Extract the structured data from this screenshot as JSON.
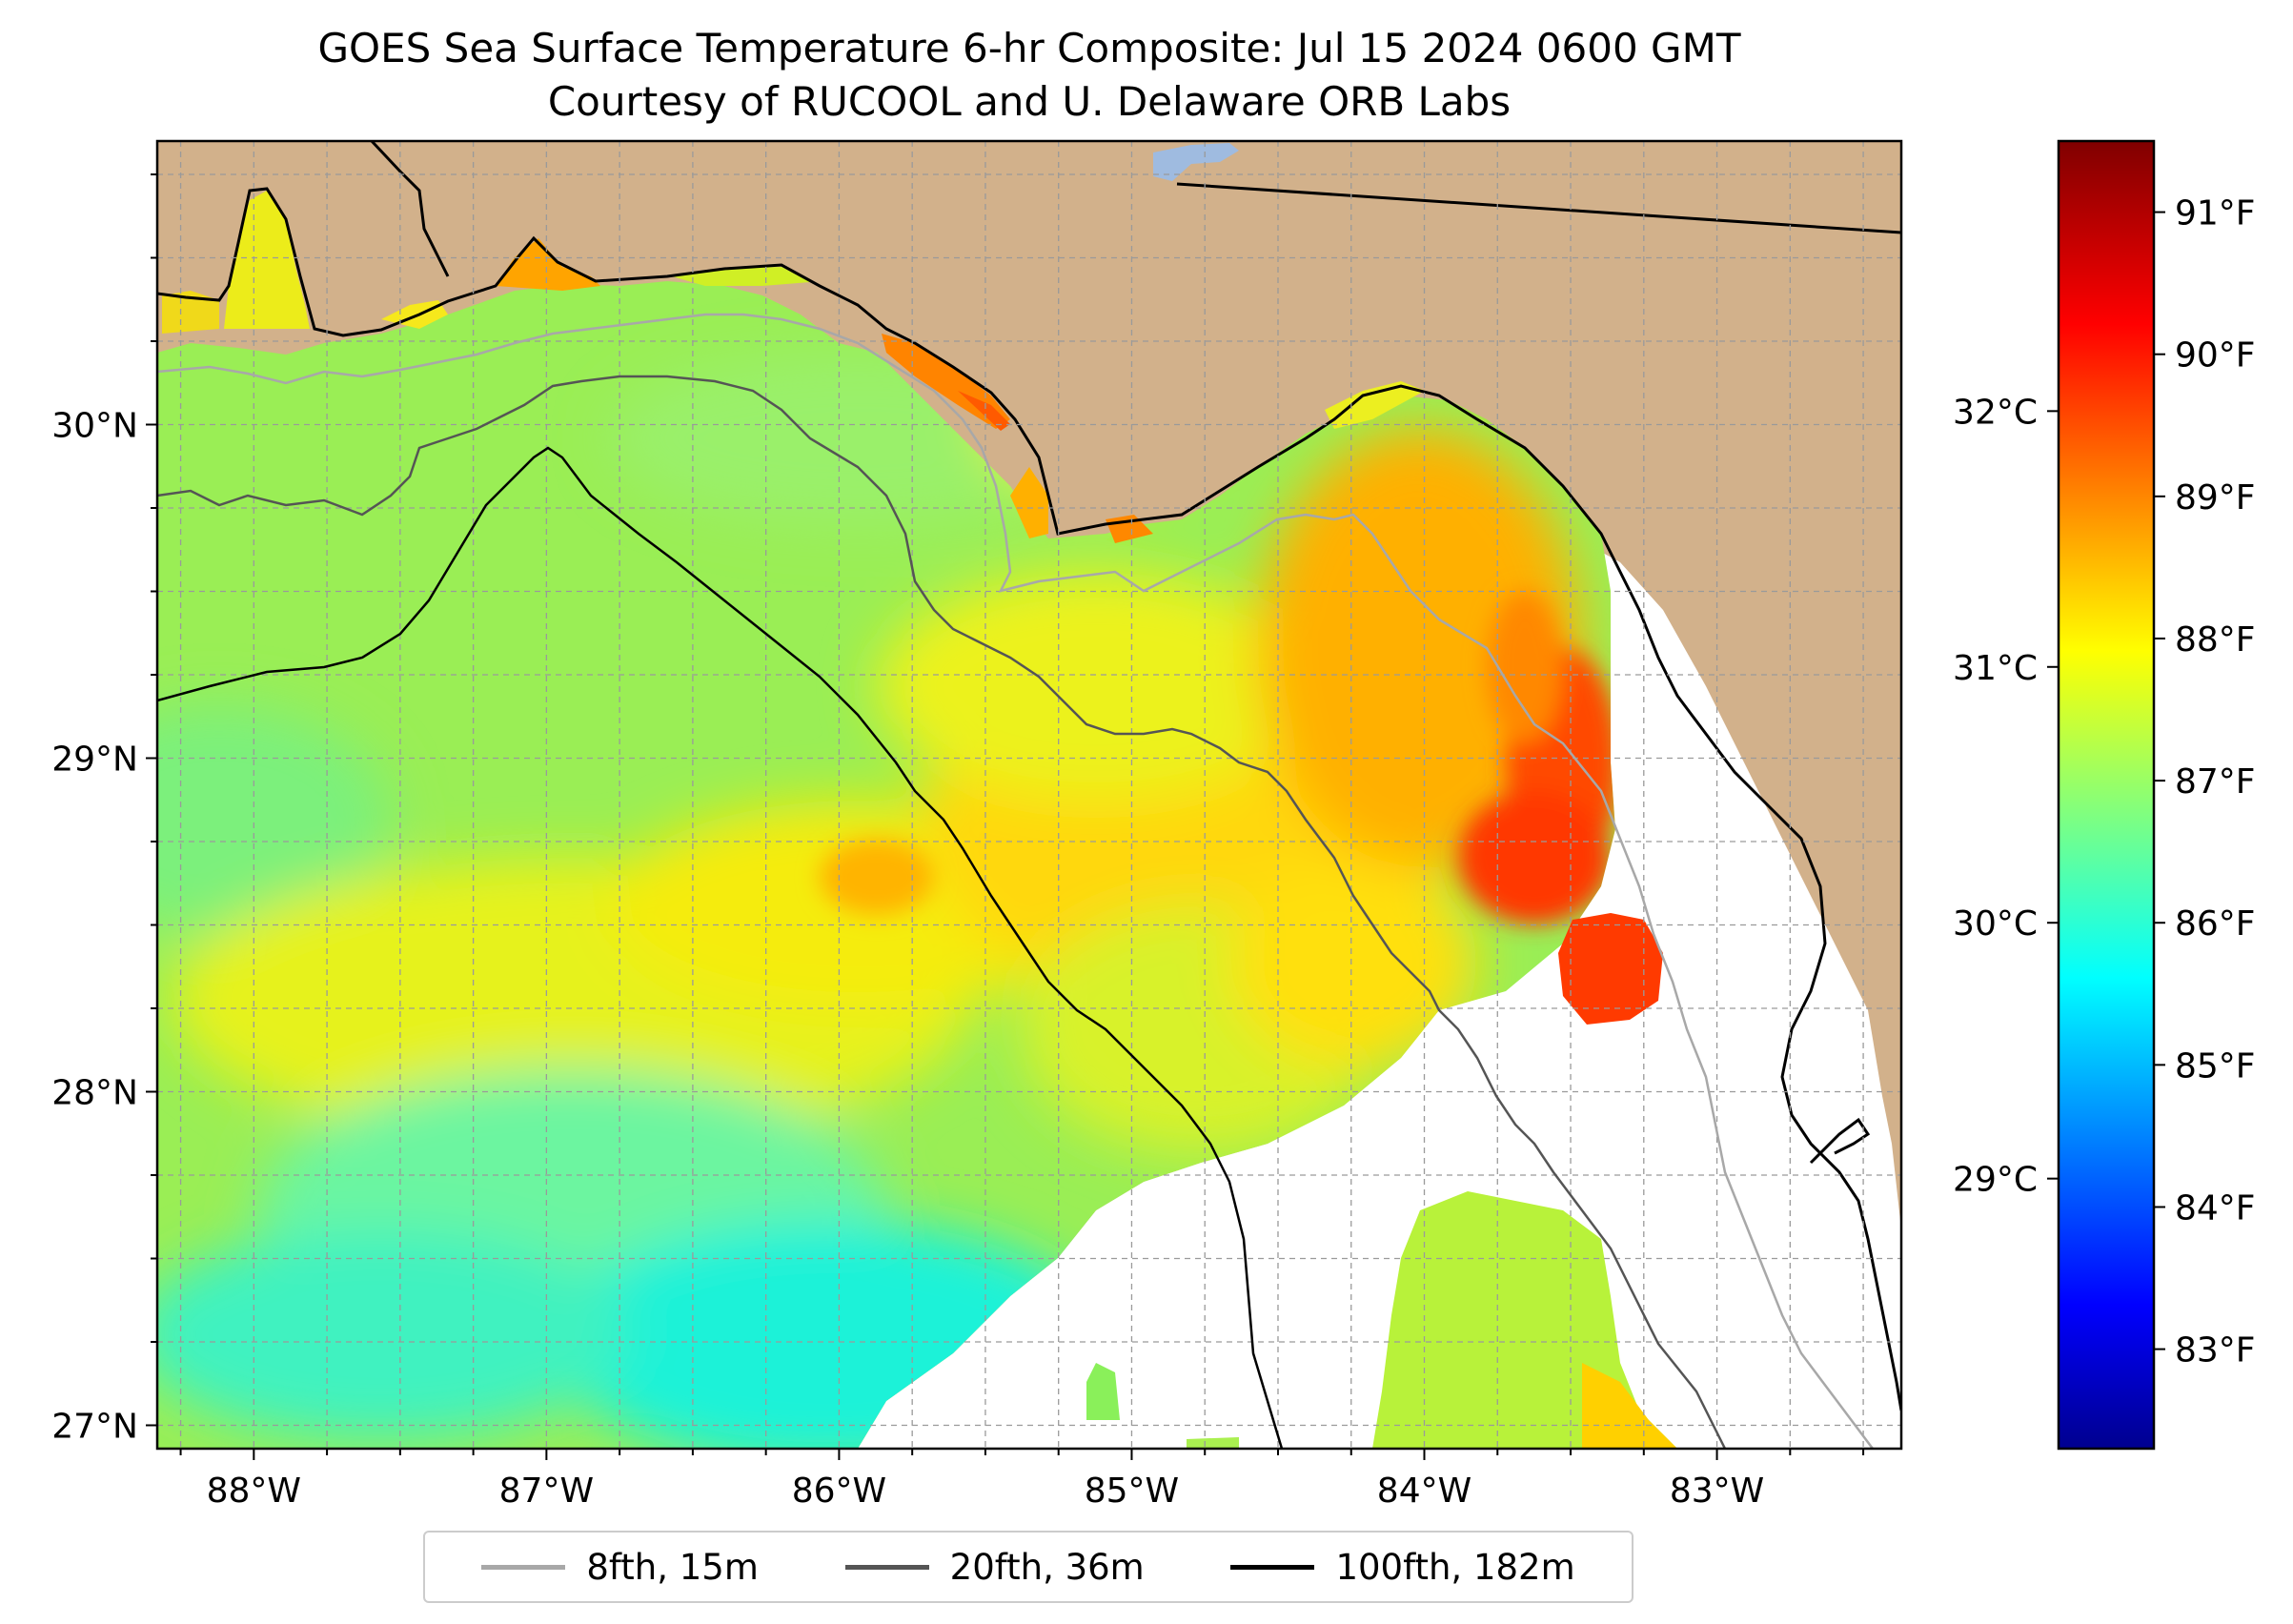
{
  "title": {
    "line1": "GOES Sea Surface Temperature 6-hr Composite: Jul 15 2024 0600 GMT",
    "line2": "Courtesy of RUCOOL and U. Delaware ORB Labs"
  },
  "map": {
    "region": "northeastern Gulf of Mexico",
    "extent": {
      "lon": [
        -88.33,
        -82.37
      ],
      "lat": [
        26.93,
        30.85
      ]
    },
    "colors": {
      "land": "#d2b18b",
      "cloud_gap": "#ffffff",
      "lake": "#9fbbe0",
      "coastline": "#000000",
      "grid": "#9a9a9a"
    },
    "lat_ticks": [
      {
        "value": 27,
        "label": "27°N"
      },
      {
        "value": 28,
        "label": "28°N"
      },
      {
        "value": 29,
        "label": "29°N"
      },
      {
        "value": 30,
        "label": "30°N"
      }
    ],
    "lon_ticks": [
      {
        "value": -88,
        "label": "88°W"
      },
      {
        "value": -87,
        "label": "87°W"
      },
      {
        "value": -86,
        "label": "86°W"
      },
      {
        "value": -85,
        "label": "85°W"
      },
      {
        "value": -84,
        "label": "84°W"
      },
      {
        "value": -83,
        "label": "83°W"
      }
    ],
    "grid_step_deg": 0.25,
    "sst_regions": [
      {
        "name": "central-gulf-warm-belt",
        "temp_f": 88.0
      },
      {
        "name": "florida-big-bend-hot-patch",
        "temp_f": 90.3
      },
      {
        "name": "southwest-cool-area",
        "temp_f": 86.0
      },
      {
        "name": "panhandle-bays",
        "temp_f": 89.0
      }
    ]
  },
  "legend": {
    "items": [
      {
        "label": "8fth, 15m",
        "color": "#a8a8a8"
      },
      {
        "label": "20fth, 36m",
        "color": "#555555"
      },
      {
        "label": "100fth, 182m",
        "color": "#000000"
      }
    ]
  },
  "colorbar": {
    "colormap": "jet",
    "range_f": [
      82.3,
      91.5
    ],
    "fahrenheit_ticks": [
      {
        "value": 83,
        "label": "83°F"
      },
      {
        "value": 84,
        "label": "84°F"
      },
      {
        "value": 85,
        "label": "85°F"
      },
      {
        "value": 86,
        "label": "86°F"
      },
      {
        "value": 87,
        "label": "87°F"
      },
      {
        "value": 88,
        "label": "88°F"
      },
      {
        "value": 89,
        "label": "89°F"
      },
      {
        "value": 90,
        "label": "90°F"
      },
      {
        "value": 91,
        "label": "91°F"
      }
    ],
    "celsius_ticks": [
      {
        "value": 29,
        "label": "29°C"
      },
      {
        "value": 30,
        "label": "30°C"
      },
      {
        "value": 31,
        "label": "31°C"
      },
      {
        "value": 32,
        "label": "32°C"
      }
    ]
  }
}
